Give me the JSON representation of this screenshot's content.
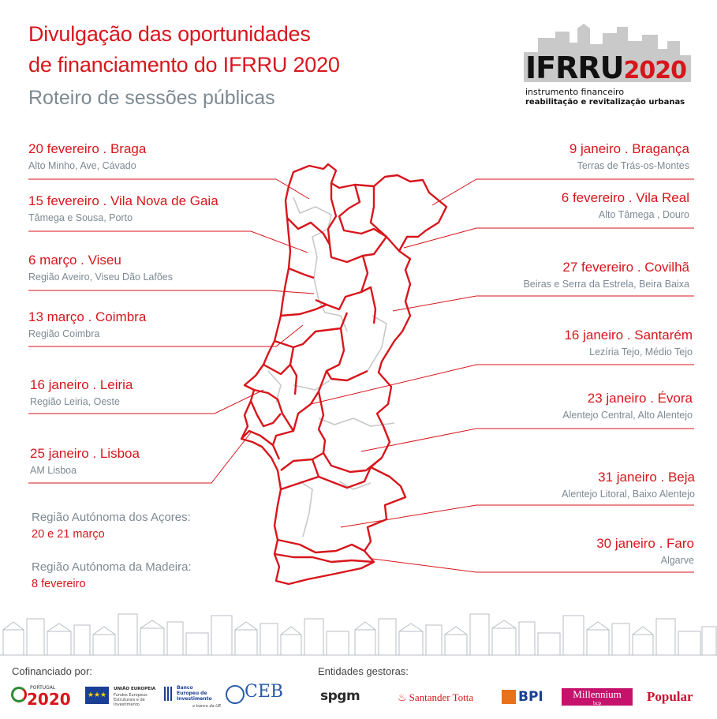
{
  "header": {
    "title_line1": "Divulgação das oportunidades",
    "title_line2": "de financiamento do IFRRU 2020",
    "subtitle": "Roteiro de sessões públicas"
  },
  "brand": {
    "logo_ifrru": "IFRRU",
    "logo_year": "2020",
    "tagline1": "instrumento financeiro",
    "tagline2": "reabilitação e revitalização urbanas",
    "red": "#d7161c",
    "grey": "#7d8a93"
  },
  "sessions_left": [
    {
      "title": "20 fevereiro . Braga",
      "regions": "Alto Minho, Ave, Cávado"
    },
    {
      "title": "15 fevereiro . Vila Nova de Gaia",
      "regions": "Tâmega e Sousa, Porto"
    },
    {
      "title": "6 março . Viseu",
      "regions": "Região Aveiro, Viseu Dão Lafões"
    },
    {
      "title": "13 março . Coimbra",
      "regions": "Região Coimbra"
    },
    {
      "title": "16 janeiro . Leiria",
      "regions": "Região Leiria, Oeste"
    },
    {
      "title": "25 janeiro . Lisboa",
      "regions": "AM Lisboa"
    }
  ],
  "sessions_right": [
    {
      "title": "9 janeiro . Bragança",
      "regions": "Terras de Trás-os-Montes"
    },
    {
      "title": "6 fevereiro . Vila Real",
      "regions": "Alto Tâmega , Douro"
    },
    {
      "title": "27 fevereiro . Covilhã",
      "regions": "Beiras e Serra da Estrela, Beira Baixa"
    },
    {
      "title": "16 janeiro . Santarém",
      "regions": "Lezíria Tejo, Médio Tejo"
    },
    {
      "title": "23 janeiro . Évora",
      "regions": "Alentejo Central, Alto Alentejo"
    },
    {
      "title": "31 janeiro . Beja",
      "regions": "Alentejo Litoral, Baixo Alentejo"
    },
    {
      "title": "30 janeiro . Faro",
      "regions": "Algarve"
    }
  ],
  "islands": [
    {
      "title": "Região Autónoma dos Açores:",
      "date": "20 e 21 março"
    },
    {
      "title": "Região Autónoma da Madeira:",
      "date": "8 fevereiro"
    }
  ],
  "footer": {
    "cofinanced_label": "Cofinanciado por:",
    "managers_label": "Entidades gestoras:",
    "cofinanciers": [
      {
        "name": "2020",
        "sub": "PORTUGAL"
      },
      {
        "name": "UNIÃO EUROPEIA",
        "sub": "Fundos Europeus Estruturais e de Investimento"
      },
      {
        "name": "Banco Europeu de Investimento",
        "sub": "o banco da UE"
      },
      {
        "name": "CEB",
        "sub": ""
      }
    ],
    "managers": [
      {
        "name": "spgm"
      },
      {
        "name": "Santander Totta"
      },
      {
        "name": "BPI"
      },
      {
        "name": "Millennium",
        "sub": "bcp"
      },
      {
        "name": "Popular"
      }
    ]
  }
}
